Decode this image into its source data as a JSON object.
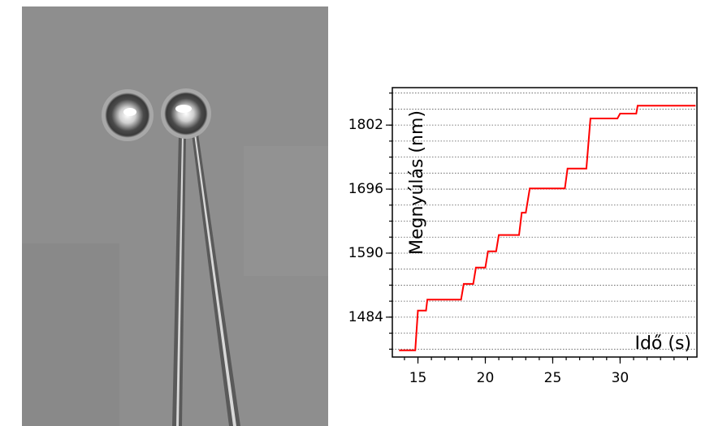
{
  "chart_data": {
    "type": "line",
    "x_label": "Idő (s)",
    "y_label": "Megnyúlás (nm)",
    "x": [
      13.6,
      14.8,
      15.0,
      15.6,
      15.7,
      18.2,
      18.4,
      19.1,
      19.3,
      20.0,
      20.2,
      20.8,
      21.0,
      22.5,
      22.7,
      23.0,
      23.3,
      25.9,
      26.1,
      27.5,
      27.8,
      29.8,
      30.0,
      31.2,
      31.3,
      35.6
    ],
    "values": [
      1429,
      1429,
      1495,
      1495,
      1513,
      1513,
      1539,
      1539,
      1566,
      1566,
      1593,
      1593,
      1620,
      1620,
      1657,
      1657,
      1697,
      1697,
      1730,
      1730,
      1813,
      1813,
      1821,
      1821,
      1834,
      1834
    ],
    "color": "#ff0000",
    "xlim": [
      13.1,
      35.7
    ],
    "ylim": [
      1418,
      1864
    ],
    "xticks": [
      15,
      20,
      25,
      30
    ],
    "yticks": [
      1484,
      1590,
      1696,
      1802
    ],
    "grid": true
  }
}
